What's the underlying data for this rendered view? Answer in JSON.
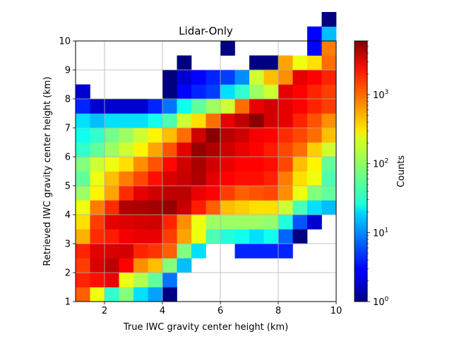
{
  "chart_data": {
    "type": "heatmap",
    "title": "Lidar-Only",
    "xlabel": "True IWC gravity center height (km)",
    "ylabel": "Retrieved IWC gravity center height (km)",
    "xlim": [
      1,
      10
    ],
    "ylim": [
      1,
      10
    ],
    "xticks": [
      2,
      4,
      6,
      8,
      10
    ],
    "yticks": [
      1,
      2,
      3,
      4,
      5,
      6,
      7,
      8,
      9,
      10
    ],
    "x_tick_labels": [
      "2",
      "4",
      "6",
      "8",
      "10"
    ],
    "y_tick_labels": [
      "1",
      "2",
      "3",
      "4",
      "5",
      "6",
      "7",
      "8",
      "9",
      "10"
    ],
    "grid": true,
    "colormap": "jet",
    "bin_width": 0.5,
    "x_bin_edges_start": 1,
    "y_bin_edges_start": 1,
    "colorbar": {
      "label": "Counts",
      "scale": "log",
      "range": [
        1,
        6000
      ],
      "ticks": [
        1,
        10,
        100,
        1000
      ],
      "tick_labels": [
        {
          "base": "10",
          "exp": "0"
        },
        {
          "base": "10",
          "exp": "1"
        },
        {
          "base": "10",
          "exp": "2"
        },
        {
          "base": "10",
          "exp": "3"
        }
      ]
    },
    "counts_note": "rows from y=1.0-1.5 (index 0) upward; columns from x=1.0-1.5 (index 0) rightward; null = empty bin",
    "counts": [
      [
        900,
        200,
        40,
        80,
        20,
        12,
        1,
        null,
        null,
        null,
        null,
        null,
        null,
        null,
        null,
        null,
        null,
        null
      ],
      [
        1500,
        1800,
        2400,
        200,
        120,
        60,
        8,
        null,
        null,
        null,
        null,
        null,
        null,
        null,
        null,
        null,
        null,
        null
      ],
      [
        1200,
        2800,
        3600,
        2000,
        600,
        400,
        80,
        15,
        null,
        null,
        null,
        null,
        null,
        null,
        null,
        null,
        null,
        null
      ],
      [
        1500,
        2600,
        2800,
        2900,
        1500,
        1300,
        900,
        80,
        20,
        null,
        null,
        4,
        4,
        4,
        4,
        null,
        null,
        null
      ],
      [
        450,
        1400,
        1600,
        2200,
        2400,
        2400,
        1200,
        500,
        200,
        50,
        35,
        30,
        20,
        30,
        7,
        1,
        null,
        null
      ],
      [
        300,
        1200,
        2500,
        2700,
        2900,
        3000,
        1500,
        600,
        200,
        100,
        100,
        100,
        100,
        90,
        35,
        6,
        2,
        null
      ],
      [
        200,
        700,
        1400,
        4000,
        4200,
        4500,
        5000,
        3200,
        1600,
        900,
        400,
        350,
        300,
        300,
        150,
        50,
        20,
        15
      ],
      [
        100,
        250,
        500,
        1400,
        2500,
        3000,
        3500,
        3600,
        2400,
        2000,
        1200,
        900,
        1000,
        1100,
        600,
        200,
        80,
        60
      ],
      [
        60,
        200,
        400,
        700,
        1100,
        1800,
        2800,
        3200,
        4000,
        2600,
        2000,
        1800,
        1800,
        1500,
        700,
        300,
        200,
        50
      ],
      [
        80,
        150,
        200,
        300,
        600,
        1000,
        1900,
        3000,
        4200,
        3000,
        2400,
        2000,
        2000,
        1800,
        1100,
        400,
        250,
        60
      ],
      [
        40,
        60,
        100,
        150,
        250,
        500,
        1000,
        2500,
        5000,
        4000,
        3000,
        2400,
        2000,
        1600,
        1100,
        800,
        350,
        150
      ],
      [
        30,
        40,
        70,
        100,
        150,
        250,
        400,
        800,
        3000,
        5500,
        3600,
        3000,
        2200,
        2000,
        1400,
        1100,
        800,
        400
      ],
      [
        20,
        15,
        20,
        20,
        20,
        30,
        50,
        150,
        300,
        800,
        2500,
        3500,
        5500,
        3000,
        2500,
        1500,
        1000,
        600
      ],
      [
        4,
        2,
        2,
        2,
        2,
        4,
        8,
        30,
        60,
        100,
        150,
        800,
        2400,
        3000,
        2500,
        2000,
        1500,
        1200
      ],
      [
        2,
        null,
        null,
        null,
        null,
        null,
        1,
        3,
        4,
        5,
        20,
        40,
        100,
        150,
        2500,
        2000,
        1500,
        1200
      ],
      [
        null,
        null,
        null,
        null,
        null,
        null,
        1,
        2,
        3,
        4,
        5,
        10,
        150,
        400,
        600,
        2500,
        2000,
        1500
      ],
      [
        null,
        null,
        null,
        null,
        null,
        null,
        null,
        1,
        null,
        null,
        null,
        null,
        1,
        1,
        500,
        200,
        300,
        800
      ],
      [
        null,
        null,
        null,
        null,
        null,
        null,
        null,
        null,
        null,
        null,
        1,
        null,
        null,
        null,
        null,
        null,
        3,
        700
      ],
      [
        null,
        null,
        null,
        null,
        null,
        null,
        null,
        null,
        null,
        null,
        null,
        null,
        null,
        null,
        null,
        null,
        3,
        15
      ],
      [
        null,
        null,
        null,
        null,
        null,
        null,
        null,
        null,
        null,
        null,
        null,
        null,
        null,
        null,
        null,
        null,
        null,
        1
      ]
    ]
  }
}
